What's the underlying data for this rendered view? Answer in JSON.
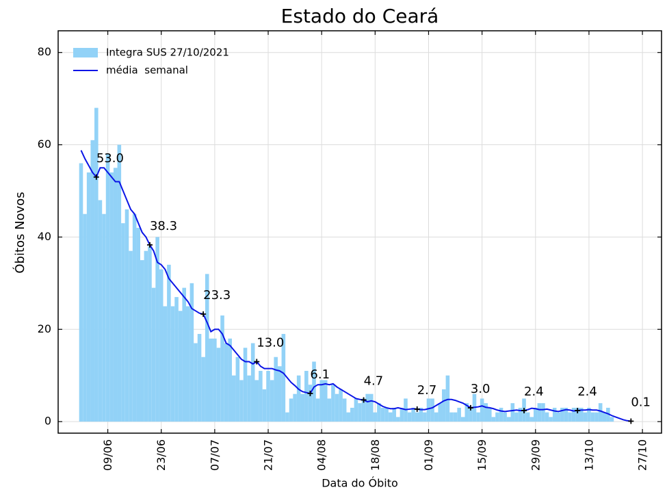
{
  "chart_data": {
    "type": "bar",
    "title": "Estado do Ceará",
    "xlabel": "Data do Óbito",
    "ylabel": "Óbitos Novos",
    "x": [
      "02/06",
      "03/06",
      "04/06",
      "05/06",
      "06/06",
      "07/06",
      "08/06",
      "09/06",
      "10/06",
      "11/06",
      "12/06",
      "13/06",
      "14/06",
      "15/06",
      "16/06",
      "17/06",
      "18/06",
      "19/06",
      "20/06",
      "21/06",
      "22/06",
      "23/06",
      "24/06",
      "25/06",
      "26/06",
      "27/06",
      "28/06",
      "29/06",
      "30/06",
      "01/07",
      "02/07",
      "03/07",
      "04/07",
      "05/07",
      "06/07",
      "07/07",
      "08/07",
      "09/07",
      "10/07",
      "11/07",
      "12/07",
      "13/07",
      "14/07",
      "15/07",
      "16/07",
      "17/07",
      "18/07",
      "19/07",
      "20/07",
      "21/07",
      "22/07",
      "23/07",
      "24/07",
      "25/07",
      "26/07",
      "27/07",
      "28/07",
      "29/07",
      "30/07",
      "31/07",
      "01/08",
      "02/08",
      "03/08",
      "04/08",
      "05/08",
      "06/08",
      "07/08",
      "08/08",
      "09/08",
      "10/08",
      "11/08",
      "12/08",
      "13/08",
      "14/08",
      "15/08",
      "16/08",
      "17/08",
      "18/08",
      "19/08",
      "20/08",
      "21/08",
      "22/08",
      "23/08",
      "24/08",
      "25/08",
      "26/08",
      "27/08",
      "28/08",
      "29/08",
      "30/08",
      "31/08",
      "01/09",
      "02/09",
      "03/09",
      "04/09",
      "05/09",
      "06/09",
      "07/09",
      "08/09",
      "09/09",
      "10/09",
      "11/09",
      "12/09",
      "13/09",
      "14/09",
      "15/09",
      "16/09",
      "17/09",
      "18/09",
      "19/09",
      "20/09",
      "21/09",
      "22/09",
      "23/09",
      "24/09",
      "25/09",
      "26/09",
      "27/09",
      "28/09",
      "29/09",
      "30/09",
      "01/10",
      "02/10",
      "03/10",
      "04/10",
      "05/10",
      "06/10",
      "07/10",
      "08/10",
      "09/10",
      "10/10",
      "11/10",
      "12/10",
      "13/10",
      "14/10",
      "15/10",
      "16/10",
      "17/10",
      "18/10",
      "19/10",
      "20/10",
      "21/10",
      "22/10",
      "23/10",
      "24/10"
    ],
    "series": [
      {
        "name": "Integra SUS 27/10/2021",
        "type": "bar",
        "color": "#92d2f7",
        "values": [
          56,
          45,
          54,
          61,
          68,
          48,
          45,
          58,
          54,
          55,
          60,
          43,
          46,
          37,
          45,
          42,
          35,
          37,
          38,
          29,
          40,
          33,
          25,
          34,
          25,
          27,
          24,
          29,
          25,
          30,
          17,
          19,
          14,
          32,
          18,
          18,
          16,
          23,
          17,
          18,
          10,
          14,
          9,
          16,
          10,
          17,
          9,
          11,
          7,
          11,
          9,
          14,
          12,
          19,
          2,
          5,
          6,
          10,
          6,
          11,
          8,
          13,
          5,
          9,
          9,
          5,
          8,
          6,
          7,
          5,
          2,
          3,
          5,
          4,
          5,
          6,
          6,
          2,
          4,
          3,
          3,
          2,
          3,
          1,
          3,
          5,
          2,
          3,
          2,
          3,
          2,
          5,
          5,
          2,
          4,
          7,
          10,
          2,
          2,
          3,
          1,
          4,
          3,
          6,
          2,
          5,
          4,
          3,
          1,
          2,
          3,
          2,
          1,
          4,
          2,
          3,
          5,
          2,
          1,
          3,
          4,
          4,
          2,
          1,
          3,
          2,
          3,
          3,
          2,
          3,
          3,
          3,
          2,
          3,
          2,
          2,
          4,
          2,
          3,
          1,
          0,
          0,
          0,
          0,
          0
        ]
      },
      {
        "name": "média  semanal",
        "type": "line",
        "color": "#0a14e6",
        "values": [
          58.8,
          57,
          55.5,
          54,
          53,
          55,
          55,
          54,
          53,
          52,
          52,
          50,
          48,
          46,
          45,
          43,
          41,
          40,
          38.3,
          37,
          34.5,
          34,
          33,
          31,
          30,
          29,
          28,
          27,
          26,
          24.5,
          24,
          23.5,
          23.3,
          21.5,
          19.5,
          20,
          20,
          19,
          17,
          16.5,
          15.5,
          14.5,
          13.5,
          13,
          13,
          12.5,
          13,
          12,
          11.5,
          11.5,
          11.5,
          11.2,
          11,
          10.5,
          9.5,
          8.5,
          7.8,
          7,
          6.5,
          6.3,
          6.1,
          7.5,
          8,
          8,
          8.2,
          8,
          8.2,
          7.5,
          7,
          6.5,
          6,
          5.5,
          5,
          4.8,
          4.7,
          4.3,
          4.5,
          4.3,
          3.8,
          3.3,
          3,
          2.8,
          2.8,
          3,
          2.8,
          2.6,
          2.7,
          2.8,
          2.7,
          2.6,
          2.6,
          2.8,
          3,
          3.5,
          4,
          4.5,
          4.8,
          4.8,
          4.6,
          4.3,
          4,
          3.5,
          3,
          3.1,
          3.2,
          3.4,
          3.1,
          3,
          2.8,
          2.5,
          2.3,
          2.2,
          2.3,
          2.4,
          2.5,
          2.4,
          2.4,
          2.6,
          2.9,
          2.8,
          2.6,
          2.6,
          2.7,
          2.5,
          2.3,
          2.2,
          2.4,
          2.6,
          2.5,
          2.3,
          2.4,
          2.5,
          2.5,
          2.6,
          2.5,
          2.5,
          2.3,
          2,
          1.7,
          1.3,
          1,
          0.7,
          0.4,
          0.2,
          0.1
        ]
      }
    ],
    "annotations": [
      {
        "x": "06/06",
        "label": "53.0"
      },
      {
        "x": "20/06",
        "label": "38.3"
      },
      {
        "x": "04/07",
        "label": "23.3"
      },
      {
        "x": "18/07",
        "label": "13.0"
      },
      {
        "x": "01/08",
        "label": "6.1"
      },
      {
        "x": "15/08",
        "label": "4.7"
      },
      {
        "x": "29/08",
        "label": "2.7"
      },
      {
        "x": "12/09",
        "label": "3.0"
      },
      {
        "x": "26/09",
        "label": "2.4"
      },
      {
        "x": "10/10",
        "label": "2.4"
      },
      {
        "x": "24/10",
        "label": "0.1"
      }
    ],
    "xlim": [
      "27/05",
      "01/11"
    ],
    "xticks": [
      "09/06",
      "23/06",
      "07/07",
      "21/07",
      "04/08",
      "18/08",
      "01/09",
      "15/09",
      "29/09",
      "13/10",
      "27/10"
    ],
    "ylim": [
      -2.5,
      84.7
    ],
    "yticks": [
      0,
      20,
      40,
      60,
      80
    ],
    "grid": true,
    "legend": "upper left"
  }
}
